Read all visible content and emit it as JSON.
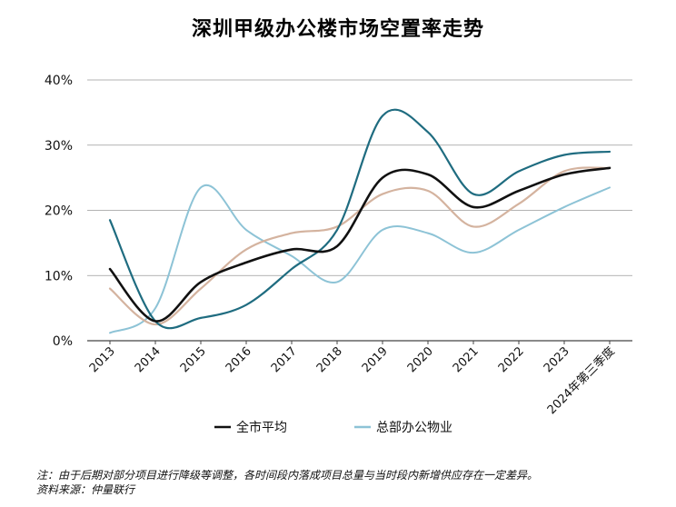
{
  "title": "深圳甲级办公楼市场空置率走势",
  "note": "注：由于后期对部分项目进行降级等调整，各时间段内落成项目总量与当时段内新增供应存在一定差异。",
  "source": "资料来源：仲量联行",
  "chart_data": {
    "type": "line",
    "categories": [
      "2013",
      "2014",
      "2015",
      "2016",
      "2017",
      "2018",
      "2019",
      "2020",
      "2021",
      "2022",
      "2023",
      "2024年第三季度"
    ],
    "y_ticks": [
      "0%",
      "10%",
      "20%",
      "30%",
      "40%"
    ],
    "ylim": [
      0,
      40
    ],
    "grid": true,
    "legend_position": "bottom",
    "legend": [
      "全市平均",
      "总部办公物业"
    ],
    "series": [
      {
        "name": "全市平均",
        "color": "#111111",
        "width": 2.6,
        "legend": true,
        "values": [
          11,
          3,
          9,
          12,
          14,
          14.5,
          25,
          25.5,
          20.5,
          23,
          25.5,
          26.5
        ]
      },
      {
        "name": "总部办公物业",
        "color": "#8dc3d6",
        "width": 2,
        "legend": true,
        "values": [
          1.2,
          5,
          23.5,
          17,
          13,
          9,
          17,
          16.5,
          13.5,
          17,
          20.5,
          23.5
        ]
      },
      {
        "name": "",
        "color": "#1f6c80",
        "width": 2.2,
        "legend": false,
        "values": [
          18.5,
          3,
          3.5,
          5.5,
          11,
          17,
          34.5,
          32,
          22.5,
          26,
          28.5,
          29
        ]
      },
      {
        "name": "",
        "color": "#d4b39f",
        "width": 2.2,
        "legend": false,
        "values": [
          8,
          2.5,
          8,
          14,
          16.5,
          17.5,
          22.5,
          23,
          17.5,
          21,
          26,
          26.5
        ]
      }
    ]
  }
}
